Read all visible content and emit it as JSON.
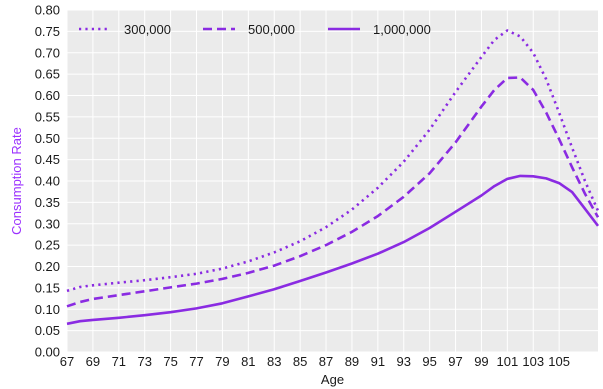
{
  "chart_data": {
    "type": "line",
    "title": "",
    "xlabel": "Age",
    "ylabel": "Consumption Rate",
    "xlim": [
      67,
      108
    ],
    "ylim": [
      0,
      0.8
    ],
    "grid": true,
    "legend_position": "top-left",
    "xticks": [
      67,
      69,
      71,
      73,
      75,
      77,
      79,
      81,
      83,
      85,
      87,
      89,
      91,
      93,
      95,
      97,
      99,
      101,
      103,
      105
    ],
    "xtick_labels": [
      "67",
      "69",
      "71",
      "73",
      "75",
      "77",
      "79",
      "81",
      "83",
      "85",
      "87",
      "89",
      "91",
      "93",
      "95",
      "97",
      "99",
      "101",
      "103",
      "105"
    ],
    "yticks": [
      0,
      0.05,
      0.1,
      0.15,
      0.2,
      0.25,
      0.3,
      0.35,
      0.4,
      0.45,
      0.5,
      0.55,
      0.6,
      0.65,
      0.7,
      0.75,
      0.8
    ],
    "ytick_labels": [
      "0.00",
      "0.05",
      "0.10",
      "0.15",
      "0.20",
      "0.25",
      "0.30",
      "0.35",
      "0.40",
      "0.45",
      "0.50",
      "0.55",
      "0.60",
      "0.65",
      "0.70",
      "0.75",
      "0.80"
    ],
    "colors": {
      "series": "#8a2be2",
      "ylabel": "#9b30ff",
      "plot_bg": "#ebebeb",
      "grid": "#ffffff"
    },
    "series": [
      {
        "name": "300,000",
        "dash": "dotted",
        "x": [
          67,
          68,
          69,
          71,
          73,
          75,
          77,
          79,
          81,
          83,
          85,
          87,
          89,
          91,
          93,
          95,
          97,
          99,
          100,
          101,
          102,
          103,
          104,
          105,
          106,
          107,
          108
        ],
        "values": [
          0.143,
          0.152,
          0.156,
          0.162,
          0.168,
          0.175,
          0.183,
          0.195,
          0.212,
          0.233,
          0.259,
          0.292,
          0.333,
          0.384,
          0.445,
          0.52,
          0.608,
          0.69,
          0.73,
          0.752,
          0.738,
          0.7,
          0.638,
          0.56,
          0.478,
          0.4,
          0.33
        ]
      },
      {
        "name": "500,000",
        "dash": "dashed",
        "x": [
          67,
          68,
          69,
          71,
          73,
          75,
          77,
          79,
          81,
          83,
          85,
          87,
          89,
          91,
          93,
          95,
          97,
          99,
          100,
          101,
          102,
          103,
          104,
          105,
          106,
          107,
          108
        ],
        "values": [
          0.107,
          0.117,
          0.124,
          0.133,
          0.142,
          0.151,
          0.16,
          0.171,
          0.185,
          0.202,
          0.224,
          0.25,
          0.281,
          0.318,
          0.363,
          0.418,
          0.49,
          0.574,
          0.613,
          0.641,
          0.642,
          0.613,
          0.56,
          0.498,
          0.432,
          0.37,
          0.315
        ]
      },
      {
        "name": "1,000,000",
        "dash": "solid",
        "x": [
          67,
          68,
          69,
          71,
          73,
          75,
          77,
          79,
          81,
          83,
          85,
          87,
          89,
          91,
          93,
          95,
          97,
          99,
          100,
          101,
          102,
          103,
          104,
          105,
          106,
          107,
          108
        ],
        "values": [
          0.066,
          0.072,
          0.075,
          0.08,
          0.086,
          0.093,
          0.102,
          0.114,
          0.13,
          0.147,
          0.166,
          0.186,
          0.207,
          0.23,
          0.257,
          0.29,
          0.328,
          0.366,
          0.388,
          0.405,
          0.412,
          0.411,
          0.406,
          0.395,
          0.374,
          0.335,
          0.295
        ]
      }
    ]
  }
}
